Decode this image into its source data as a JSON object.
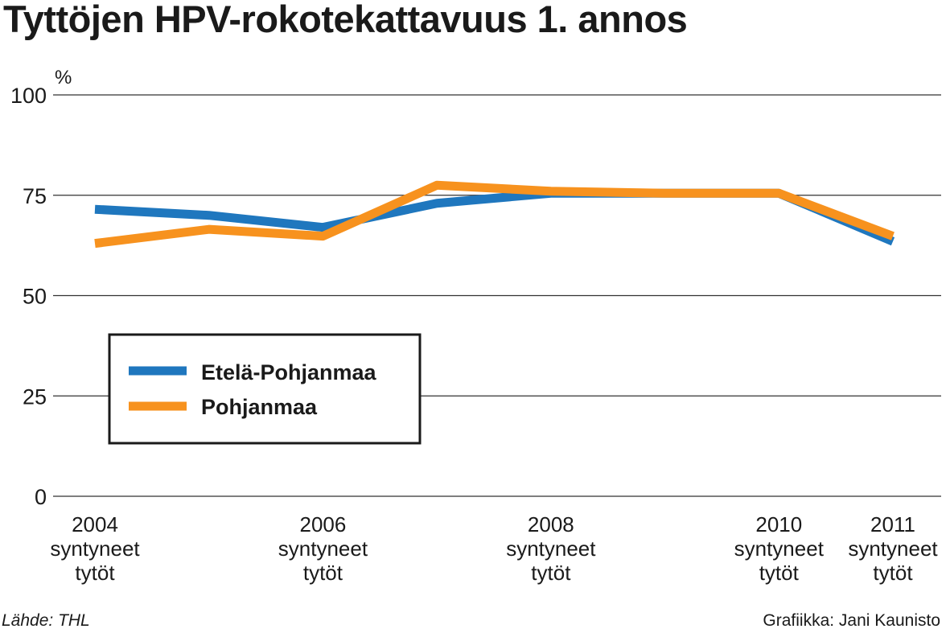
{
  "chart_data": {
    "type": "line",
    "title": "Tyttöjen HPV-rokotekattavuus 1. annos",
    "ylabel": "%",
    "ylim": [
      0,
      100
    ],
    "yticks": [
      0,
      25,
      50,
      75,
      100
    ],
    "x": [
      2004,
      2005,
      2006,
      2007,
      2008,
      2009,
      2010,
      2011
    ],
    "x_tick_labels": [
      {
        "x": 2004,
        "lines": [
          "2004",
          "syntyneet",
          "tytöt"
        ]
      },
      {
        "x": 2006,
        "lines": [
          "2006",
          "syntyneet",
          "tytöt"
        ]
      },
      {
        "x": 2008,
        "lines": [
          "2008",
          "syntyneet",
          "tytöt"
        ]
      },
      {
        "x": 2010,
        "lines": [
          "2010",
          "syntyneet",
          "tytöt"
        ]
      },
      {
        "x": 2011,
        "lines": [
          "2011",
          "syntyneet",
          "tytöt"
        ]
      }
    ],
    "series": [
      {
        "name": "Etelä-Pohjanmaa",
        "color": "#1f77be",
        "values": [
          71.5,
          70,
          67,
          73,
          75.5,
          75.5,
          75.5,
          63.5
        ]
      },
      {
        "name": "Pohjanmaa",
        "color": "#f7921e",
        "values": [
          63,
          66.5,
          64.8,
          77.5,
          76,
          75.5,
          75.5,
          64.8
        ]
      }
    ],
    "grid": true,
    "legend": "left"
  },
  "footer": {
    "source": "Lähde: THL",
    "credit": "Grafiikka: Jani Kaunisto"
  }
}
